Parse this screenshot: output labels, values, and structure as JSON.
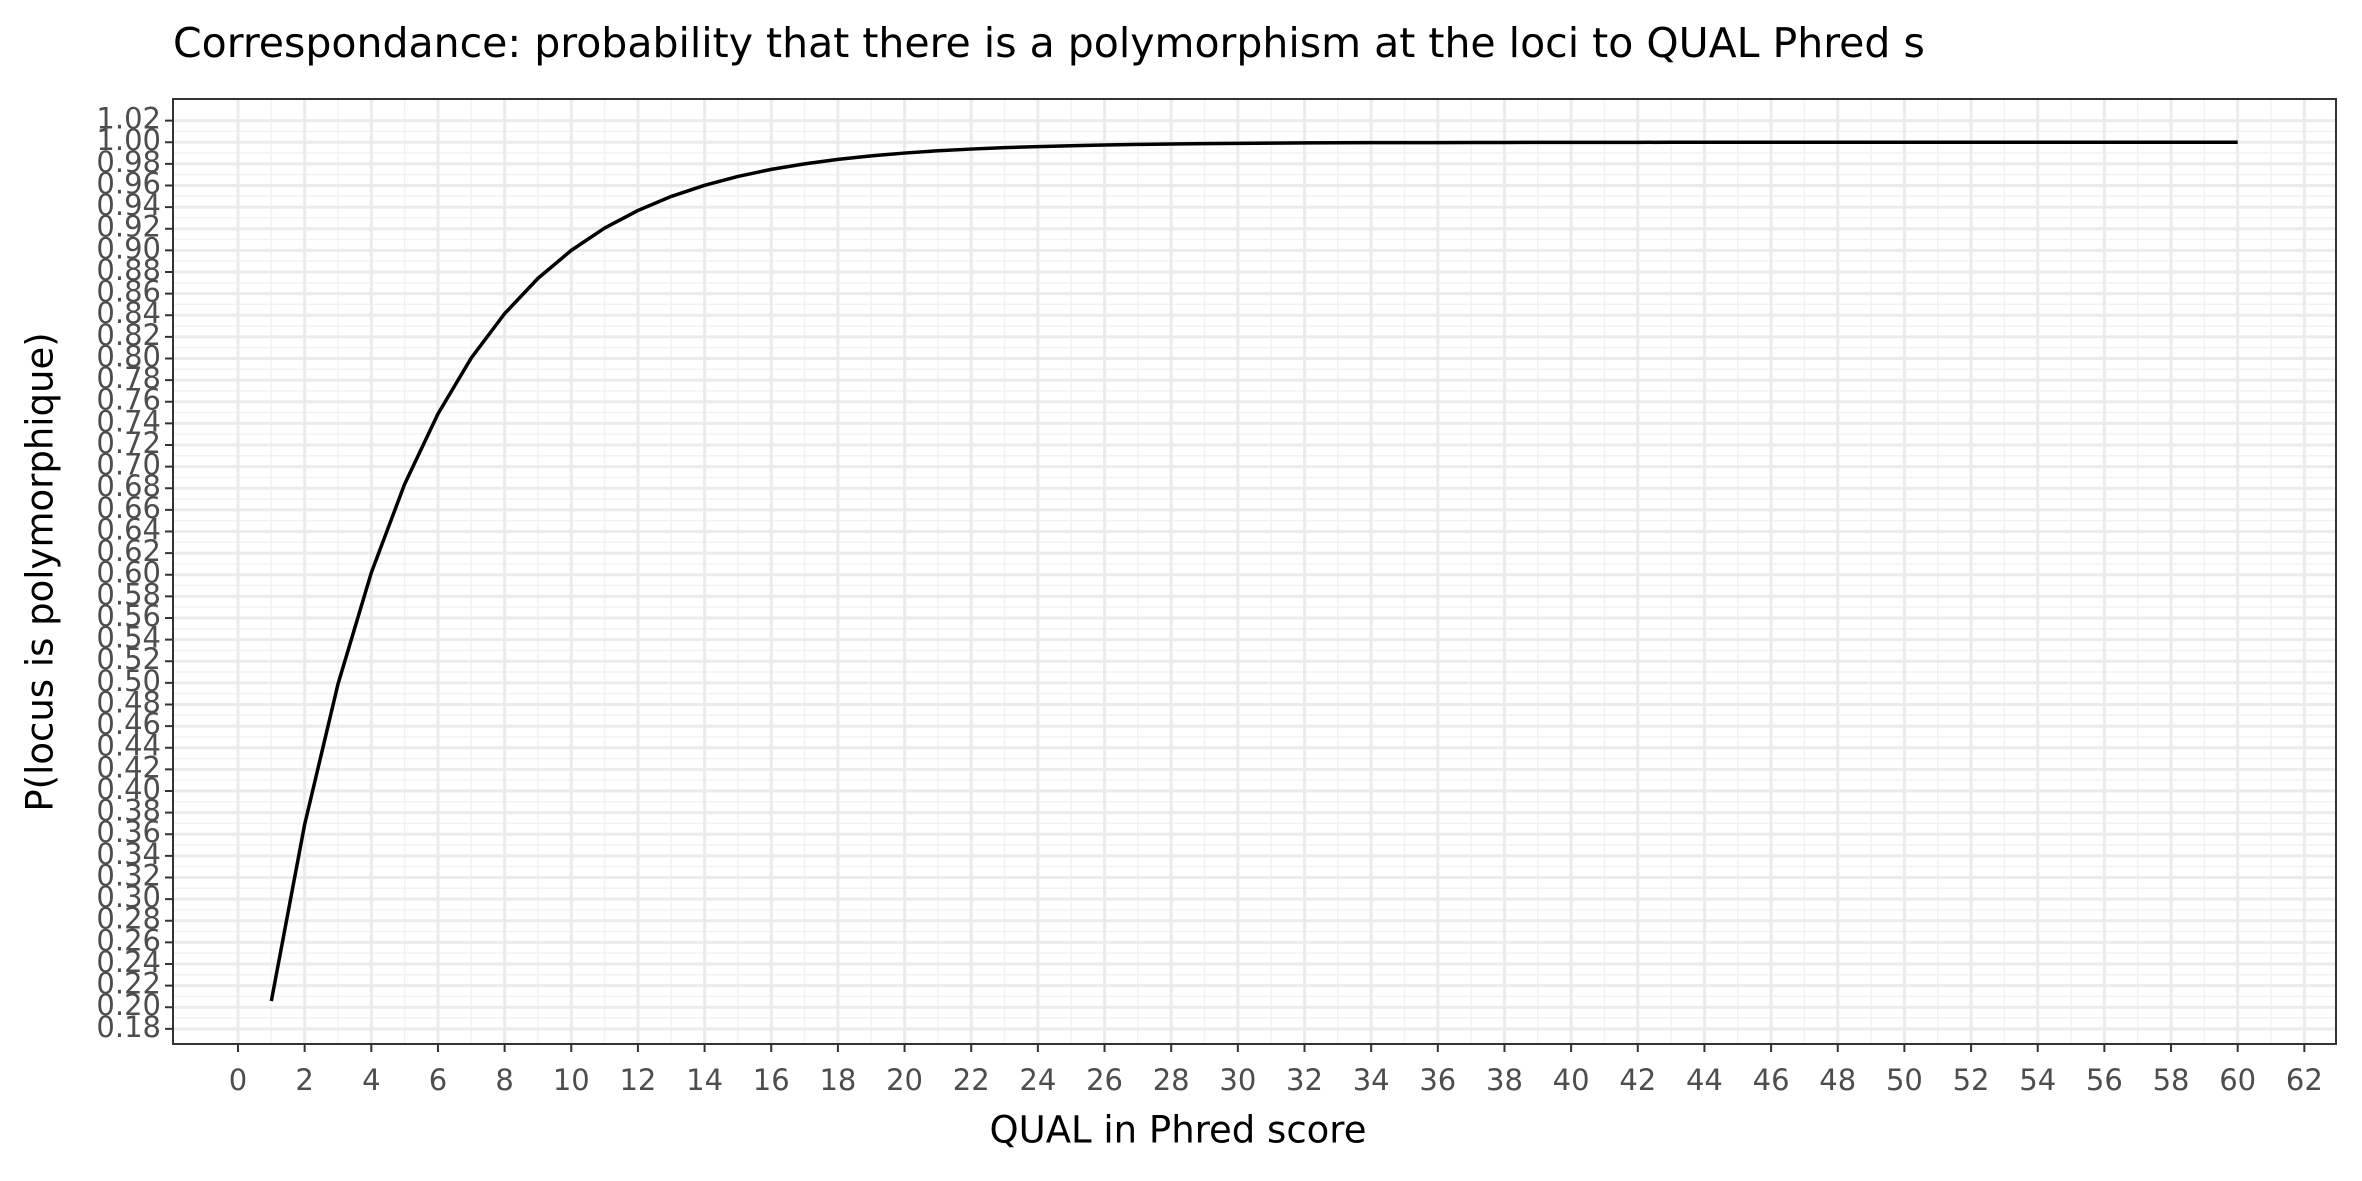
{
  "chart_data": {
    "type": "line",
    "title": "Correspondance:  probability that there is a polymorphism at the loci to QUAL Phred s",
    "x_label": "QUAL in Phred score",
    "y_label": "P(locus is polymorphique)",
    "x": [
      1,
      2,
      3,
      4,
      5,
      6,
      7,
      8,
      9,
      10,
      11,
      12,
      13,
      14,
      15,
      16,
      17,
      18,
      19,
      20,
      21,
      22,
      23,
      24,
      25,
      26,
      27,
      28,
      29,
      30,
      31,
      32,
      33,
      34,
      35,
      36,
      37,
      38,
      39,
      40,
      41,
      42,
      43,
      44,
      45,
      46,
      47,
      48,
      49,
      50,
      51,
      52,
      53,
      54,
      55,
      56,
      57,
      58,
      59,
      60
    ],
    "series": [
      {
        "color": "#000000",
        "values": [
          0.2057,
          0.369,
          0.4988,
          0.6019,
          0.6838,
          0.7488,
          0.8005,
          0.8415,
          0.8741,
          0.9,
          0.9206,
          0.9369,
          0.9499,
          0.9602,
          0.9684,
          0.9749,
          0.98,
          0.9842,
          0.9874,
          0.99,
          0.9921,
          0.9937,
          0.995,
          0.996,
          0.9968,
          0.9975,
          0.998,
          0.9984,
          0.9987,
          0.999,
          0.9992,
          0.9994,
          0.9995,
          0.9996,
          0.9997,
          0.9997,
          0.9998,
          0.9998,
          0.9999,
          0.9999,
          0.9999,
          0.9999,
          1,
          1,
          1,
          1,
          1,
          1,
          1,
          1,
          1,
          1,
          1,
          1,
          1,
          1,
          1,
          1,
          1,
          1
        ]
      }
    ],
    "xlim": [
      -1.95,
      62.95
    ],
    "xticks": [
      0,
      2,
      4,
      6,
      8,
      10,
      12,
      14,
      16,
      18,
      20,
      22,
      24,
      26,
      28,
      30,
      32,
      34,
      36,
      38,
      40,
      42,
      44,
      46,
      48,
      50,
      52,
      54,
      56,
      58,
      60,
      62
    ],
    "ylim": [
      0.166,
      1.04
    ],
    "yticks": [
      0.18,
      {
        "value": 0.2,
        "label": "0.20"
      },
      0.22,
      0.24,
      0.26,
      0.28,
      {
        "value": 0.3,
        "label": "0.30"
      },
      0.32,
      0.34,
      0.36,
      0.38,
      {
        "value": 0.4,
        "label": "0.40"
      },
      0.42,
      0.44,
      0.46,
      0.48,
      {
        "value": 0.5,
        "label": "0.50"
      },
      0.52,
      0.54,
      0.56,
      0.58,
      {
        "value": 0.6,
        "label": "0.60"
      },
      0.62,
      0.64,
      0.66,
      0.68,
      {
        "value": 0.7,
        "label": "0.70"
      },
      0.72,
      0.74,
      0.76,
      0.78,
      {
        "value": 0.8,
        "label": "0.80"
      },
      0.82,
      0.84,
      0.86,
      0.88,
      {
        "value": 0.9,
        "label": "0.90"
      },
      0.92,
      0.94,
      0.96,
      0.98,
      {
        "value": 1,
        "label": "1.00"
      },
      1.02
    ],
    "grid": true
  }
}
